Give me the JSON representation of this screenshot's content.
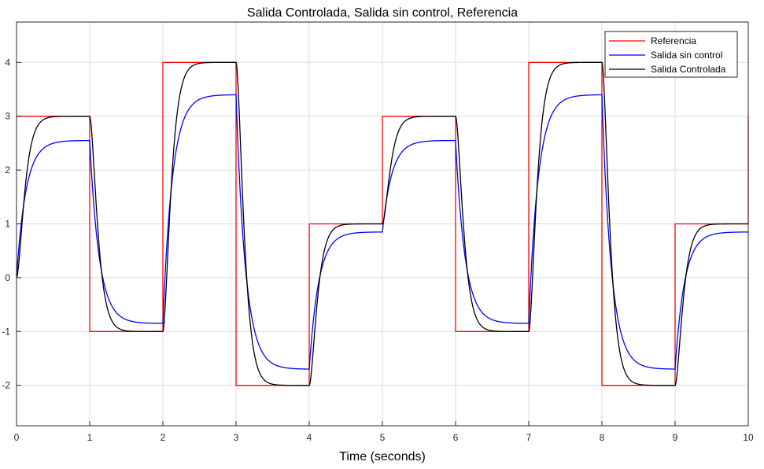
{
  "chart_data": {
    "type": "line",
    "title": "Salida Controlada, Salida sin control, Referencia",
    "xlabel": "Time (seconds)",
    "ylabel": "",
    "xlim": [
      0,
      10
    ],
    "ylim": [
      -2.75,
      4.75
    ],
    "xticks": [
      0,
      1,
      2,
      3,
      4,
      5,
      6,
      7,
      8,
      9,
      10
    ],
    "yticks": [
      -2,
      -1,
      0,
      1,
      2,
      3,
      4
    ],
    "grid": true,
    "legend_position": "top-right",
    "reference_steps": {
      "t": [
        0,
        1,
        2,
        3,
        4,
        5,
        6,
        7,
        8,
        9
      ],
      "values": [
        3,
        -1,
        4,
        -2,
        1,
        3,
        -1,
        4,
        -2,
        1
      ]
    },
    "series": [
      {
        "name": "Referencia",
        "color": "#ff0000",
        "kind": "step",
        "x": [
          0,
          1,
          1,
          2,
          2,
          3,
          3,
          4,
          4,
          5,
          5,
          6,
          6,
          7,
          7,
          8,
          8,
          9,
          9,
          10,
          10
        ],
        "y": [
          3,
          3,
          -1,
          -1,
          4,
          4,
          -2,
          -2,
          1,
          1,
          3,
          3,
          -1,
          -1,
          4,
          4,
          -2,
          -2,
          1,
          1,
          3
        ]
      },
      {
        "name": "Salida sin control",
        "color": "#0000ff",
        "kind": "first-order",
        "gain": 0.85,
        "time_constant": 0.13,
        "initial_value": 0
      },
      {
        "name": "Salida Controlada",
        "color": "#000000",
        "kind": "second-order-critically-damped",
        "gain": 1.0,
        "time_constant": 0.065,
        "initial_value": 0
      }
    ]
  }
}
